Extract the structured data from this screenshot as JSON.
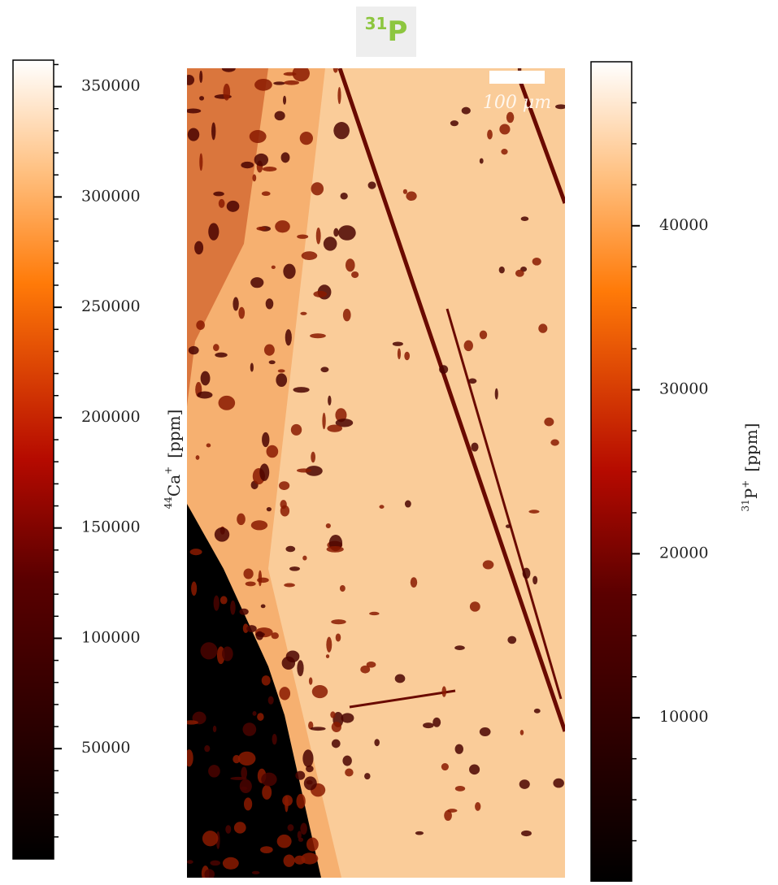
{
  "chart_data": {
    "type": "heatmap",
    "title_superscript": "31",
    "title": "P",
    "colormap": "gist_heat",
    "scale_bar_label": "100 μm",
    "colorbars": [
      {
        "side": "left",
        "label_isotope": "44",
        "label_element": "Ca",
        "label_charge": "+",
        "label_unit": "[ppm]",
        "lim": [
          0,
          362000
        ],
        "ticks": [
          50000,
          100000,
          150000,
          200000,
          250000,
          300000,
          350000
        ],
        "minor_ticks": [
          10000,
          20000,
          30000,
          40000,
          60000,
          70000,
          80000,
          90000,
          110000,
          120000,
          130000,
          140000,
          160000,
          170000,
          180000,
          190000,
          210000,
          220000,
          230000,
          240000,
          260000,
          270000,
          280000,
          290000,
          310000,
          320000,
          330000,
          340000,
          360000
        ]
      },
      {
        "side": "right",
        "label_isotope": "31",
        "label_element": "P",
        "label_charge": "+",
        "label_unit": "[ppm]",
        "lim": [
          0,
          50000
        ],
        "ticks": [
          10000,
          20000,
          30000,
          40000
        ],
        "minor_ticks": [
          2500,
          5000,
          7500,
          12500,
          15000,
          17500,
          22500,
          25000,
          27500,
          32500,
          35000,
          37500,
          42500,
          45000,
          47500
        ]
      }
    ]
  }
}
